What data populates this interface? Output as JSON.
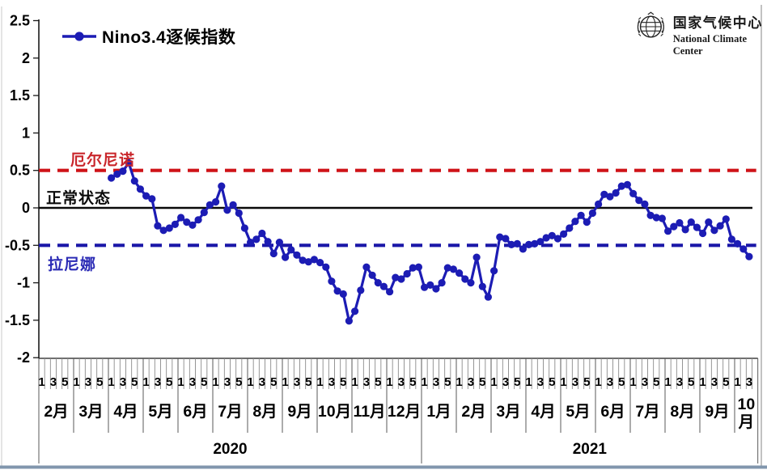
{
  "legend": {
    "label": "Nino3.4逐候指数"
  },
  "annotations": {
    "el_nino": "厄尔尼诺",
    "normal": "正常状态",
    "la_nina": "拉尼娜"
  },
  "logo": {
    "title_cn": "国家气候中心",
    "title_en": "National Climate Center"
  },
  "colors": {
    "line": "#1c1cb4",
    "el_nino_line": "#cf1318",
    "normal_line": "#0a0a0a",
    "la_nina_line": "#1a17a8",
    "el_nino_text": "#c9262b",
    "la_nina_text": "#2b2bb5",
    "bottom_bar": "#8196ad"
  },
  "chart_data": {
    "type": "line",
    "series_name": "Nino3.4逐候指数",
    "x_unit": "pentad (候)",
    "y_ticks": [
      "2.5",
      "2",
      "1.5",
      "1",
      "0.5",
      "0",
      "-0.5",
      "-1",
      "-1.5",
      "-2"
    ],
    "ylim": [
      -2,
      2.5
    ],
    "grid": false,
    "legend_position": "top-left",
    "reference_lines": [
      {
        "label": "厄尔尼诺",
        "value": 0.5,
        "style": "dashed",
        "color": "#cf1318"
      },
      {
        "label": "正常状态",
        "value": 0,
        "style": "solid",
        "color": "#0a0a0a"
      },
      {
        "label": "拉尼娜",
        "value": -0.5,
        "style": "dashed",
        "color": "#1a17a8"
      }
    ],
    "x_axis": {
      "pentad_tick_labels": [
        "1",
        "3",
        "5"
      ],
      "months": [
        {
          "label": "2月",
          "pentads": 6
        },
        {
          "label": "3月",
          "pentads": 6
        },
        {
          "label": "4月",
          "pentads": 6
        },
        {
          "label": "5月",
          "pentads": 6
        },
        {
          "label": "6月",
          "pentads": 6
        },
        {
          "label": "7月",
          "pentads": 6
        },
        {
          "label": "8月",
          "pentads": 6
        },
        {
          "label": "9月",
          "pentads": 6
        },
        {
          "label": "10月",
          "pentads": 6
        },
        {
          "label": "11月",
          "pentads": 6
        },
        {
          "label": "12月",
          "pentads": 6
        },
        {
          "label": "1月",
          "pentads": 6
        },
        {
          "label": "2月",
          "pentads": 6
        },
        {
          "label": "3月",
          "pentads": 6
        },
        {
          "label": "4月",
          "pentads": 6
        },
        {
          "label": "5月",
          "pentads": 6
        },
        {
          "label": "6月",
          "pentads": 6
        },
        {
          "label": "7月",
          "pentads": 6
        },
        {
          "label": "8月",
          "pentads": 6
        },
        {
          "label": "9月",
          "pentads": 6
        },
        {
          "label": "10月",
          "pentads": 4
        }
      ],
      "years": [
        {
          "label": "2020",
          "months": 11
        },
        {
          "label": "2021",
          "months": 10
        }
      ]
    },
    "series": [
      {
        "month": "2020-04",
        "values": [
          0.4,
          0.45,
          0.49,
          0.6,
          0.36,
          0.25
        ]
      },
      {
        "month": "2020-05",
        "values": [
          0.16,
          0.12,
          -0.24,
          -0.3,
          -0.27,
          -0.22
        ]
      },
      {
        "month": "2020-06",
        "values": [
          -0.13,
          -0.19,
          -0.23,
          -0.16,
          -0.06,
          0.04
        ]
      },
      {
        "month": "2020-07",
        "values": [
          0.08,
          0.29,
          -0.03,
          0.04,
          -0.07,
          -0.27
        ]
      },
      {
        "month": "2020-08",
        "values": [
          -0.46,
          -0.42,
          -0.34,
          -0.45,
          -0.61,
          -0.46
        ]
      },
      {
        "month": "2020-09",
        "values": [
          -0.66,
          -0.56,
          -0.63,
          -0.7,
          -0.72,
          -0.69
        ]
      },
      {
        "month": "2020-10",
        "values": [
          -0.73,
          -0.79,
          -0.98,
          -1.11,
          -1.15,
          -1.51
        ]
      },
      {
        "month": "2020-11",
        "values": [
          -1.38,
          -1.1,
          -0.79,
          -0.9,
          -1.0,
          -1.05
        ]
      },
      {
        "month": "2020-12",
        "values": [
          -1.12,
          -0.93,
          -0.95,
          -0.88,
          -0.8,
          -0.79
        ]
      },
      {
        "month": "2021-01",
        "values": [
          -1.06,
          -1.03,
          -1.08,
          -1.0,
          -0.8,
          -0.82
        ]
      },
      {
        "month": "2021-02",
        "values": [
          -0.87,
          -0.95,
          -1.0,
          -0.66,
          -1.05,
          -1.19
        ]
      },
      {
        "month": "2021-03",
        "values": [
          -0.84,
          -0.39,
          -0.41,
          -0.49,
          -0.48,
          -0.55
        ]
      },
      {
        "month": "2021-04",
        "values": [
          -0.49,
          -0.48,
          -0.45,
          -0.4,
          -0.37,
          -0.41
        ]
      },
      {
        "month": "2021-05",
        "values": [
          -0.35,
          -0.27,
          -0.18,
          -0.1,
          -0.19,
          -0.07
        ]
      },
      {
        "month": "2021-06",
        "values": [
          0.05,
          0.18,
          0.15,
          0.2,
          0.29,
          0.31
        ]
      },
      {
        "month": "2021-07",
        "values": [
          0.19,
          0.1,
          0.05,
          -0.1,
          -0.13,
          -0.14
        ]
      },
      {
        "month": "2021-08",
        "values": [
          -0.31,
          -0.25,
          -0.2,
          -0.29,
          -0.19,
          -0.26
        ]
      },
      {
        "month": "2021-09",
        "values": [
          -0.34,
          -0.19,
          -0.3,
          -0.24,
          -0.15,
          -0.42
        ]
      },
      {
        "month": "2021-10",
        "values": [
          -0.48,
          -0.55,
          -0.65
        ]
      }
    ]
  }
}
